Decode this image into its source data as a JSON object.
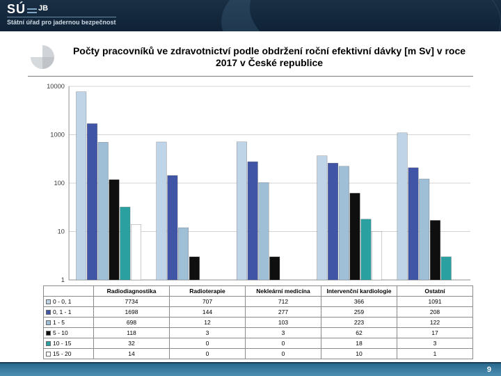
{
  "header": {
    "org_abbr_left": "SÚ",
    "org_abbr_right": "JB",
    "org_full": "Státní úřad pro jadernou bezpečnost"
  },
  "title": "Počty pracovníků ve zdravotnictví podle obdržení roční efektivní dávky [m Sv] v roce 2017 v České republice",
  "chart": {
    "type": "bar",
    "scale": "log",
    "ylim": [
      1,
      10000
    ],
    "yticks": [
      1,
      10,
      100,
      1000,
      10000
    ],
    "ytick_labels": [
      "1",
      "10",
      "100",
      "1000",
      "10000"
    ],
    "background_color": "#ffffff",
    "grid_color": "#a8a8a8",
    "categories": [
      "Radiodiagnostika",
      "Radioterapie",
      "Nekleární medicína",
      "Intervenční kardiologie",
      "Ostatní"
    ],
    "series": [
      {
        "label": "0 - 0, 1",
        "color": "#bfd4e6",
        "values": [
          7734,
          707,
          712,
          366,
          1091
        ]
      },
      {
        "label": "0, 1 - 1",
        "color": "#4055a6",
        "values": [
          1698,
          144,
          277,
          259,
          208
        ]
      },
      {
        "label": "1 - 5",
        "color": "#9fbfd7",
        "values": [
          698,
          12,
          103,
          223,
          122
        ]
      },
      {
        "label": "5 - 10",
        "color": "#0f0f0f",
        "values": [
          118,
          3,
          3,
          62,
          17
        ]
      },
      {
        "label": "10 - 15",
        "color": "#2aa0a0",
        "values": [
          32,
          0,
          0,
          18,
          3
        ]
      },
      {
        "label": "15 - 20",
        "color": "#ffffff",
        "values": [
          14,
          0,
          0,
          10,
          1
        ]
      }
    ],
    "bar_group_width": 0.82,
    "label_fontsize": 9
  },
  "footer": {
    "page": "9"
  }
}
